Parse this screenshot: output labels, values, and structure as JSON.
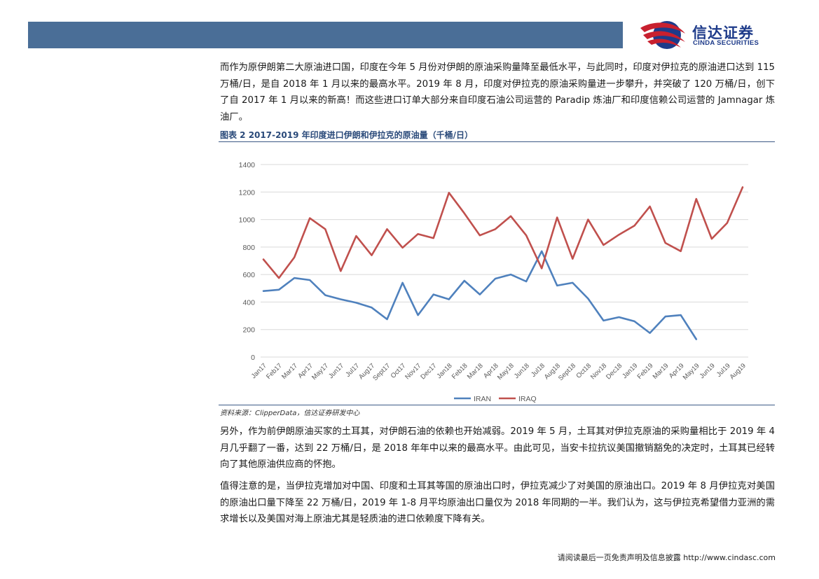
{
  "header": {
    "logo_cn": "信达证券",
    "logo_en": "CINDA SECURITIES",
    "bar_color": "#4a6e97",
    "brand_color": "#1e3b8a",
    "logo_swoosh_color": "#c8202f"
  },
  "body": {
    "paragraph1": "而作为原伊朗第二大原油进口国，印度在今年 5 月份对伊朗的原油采购量降至最低水平，与此同时，印度对伊拉克的原油进口达到 115 万桶/日，是自 2018 年 1 月以来的最高水平。2019 年 8 月，印度对伊拉克的原油采购量进一步攀升，并突破了 120 万桶/日，创下了自 2017 年 1 月以来的新高！而这些进口订单大部分来自印度石油公司运营的 Paradip 炼油厂和印度信赖公司运营的 Jamnagar 炼油厂。",
    "paragraph2": "另外，作为前伊朗原油买家的土耳其，对伊朗石油的依赖也开始减弱。2019 年 5 月，土耳其对伊拉克原油的采购量相比于 2019 年 4 月几乎翻了一番，达到 22 万桶/日，是 2018 年年中以来的最高水平。由此可见，当安卡拉抗议美国撤销豁免的决定时，土耳其已经转向了其他原油供应商的怀抱。",
    "paragraph3": "值得注意的是，当伊拉克增加对中国、印度和土耳其等国的原油出口时，伊拉克减少了对美国的原油出口。2019 年 8 月伊拉克对美国的原油出口量下降至 22 万桶/日，2019 年 1-8 月平均原油出口量仅为 2018 年同期的一半。我们认为，这与伊拉克希望借力亚洲的需求增长以及美国对海上原油尤其是轻质油的进口依赖度下降有关。"
  },
  "figure": {
    "title": "图表 2   2017-2019 年印度进口伊朗和伊拉克的原油量（千桶/日）",
    "source": "资料来源：ClipperData，信达证券研发中心"
  },
  "chart_data": {
    "type": "line",
    "title": "",
    "xlabel": "",
    "ylabel": "",
    "ylim": [
      0,
      1400
    ],
    "yticks": [
      0,
      200,
      400,
      600,
      800,
      1000,
      1200,
      1400
    ],
    "grid": true,
    "legend_position": "bottom-center",
    "categories": [
      "Jan17",
      "Feb17",
      "Mar17",
      "Apr17",
      "May17",
      "Jun17",
      "Jul17",
      "Aug17",
      "Sept17",
      "Oct17",
      "Nov17",
      "Dec17",
      "Jan18",
      "Feb18",
      "Mar18",
      "Apr18",
      "May18",
      "Jun18",
      "Jul18",
      "Aug18",
      "Sept18",
      "Oct18",
      "Nov18",
      "Dec18",
      "Jan19",
      "Feb19",
      "Mar19",
      "Apr19",
      "May19",
      "Jun19",
      "Jul19",
      "Aug19"
    ],
    "series": [
      {
        "name": "IRAN",
        "color": "#4f81bd",
        "values": [
          480,
          490,
          575,
          560,
          450,
          420,
          395,
          360,
          275,
          540,
          305,
          455,
          420,
          555,
          455,
          570,
          600,
          550,
          770,
          520,
          540,
          425,
          265,
          290,
          260,
          175,
          295,
          305,
          130,
          null,
          null,
          null
        ]
      },
      {
        "name": "IRAQ",
        "color": "#c0504d",
        "values": [
          710,
          575,
          725,
          1010,
          930,
          625,
          880,
          740,
          930,
          795,
          895,
          865,
          1195,
          1045,
          885,
          930,
          1025,
          885,
          645,
          1015,
          715,
          1000,
          815,
          890,
          955,
          1095,
          830,
          770,
          1150,
          860,
          975,
          1235
        ]
      }
    ]
  },
  "footer": {
    "text": "请阅读最后一页免责声明及信息披露  http://www.cindasc.com"
  }
}
